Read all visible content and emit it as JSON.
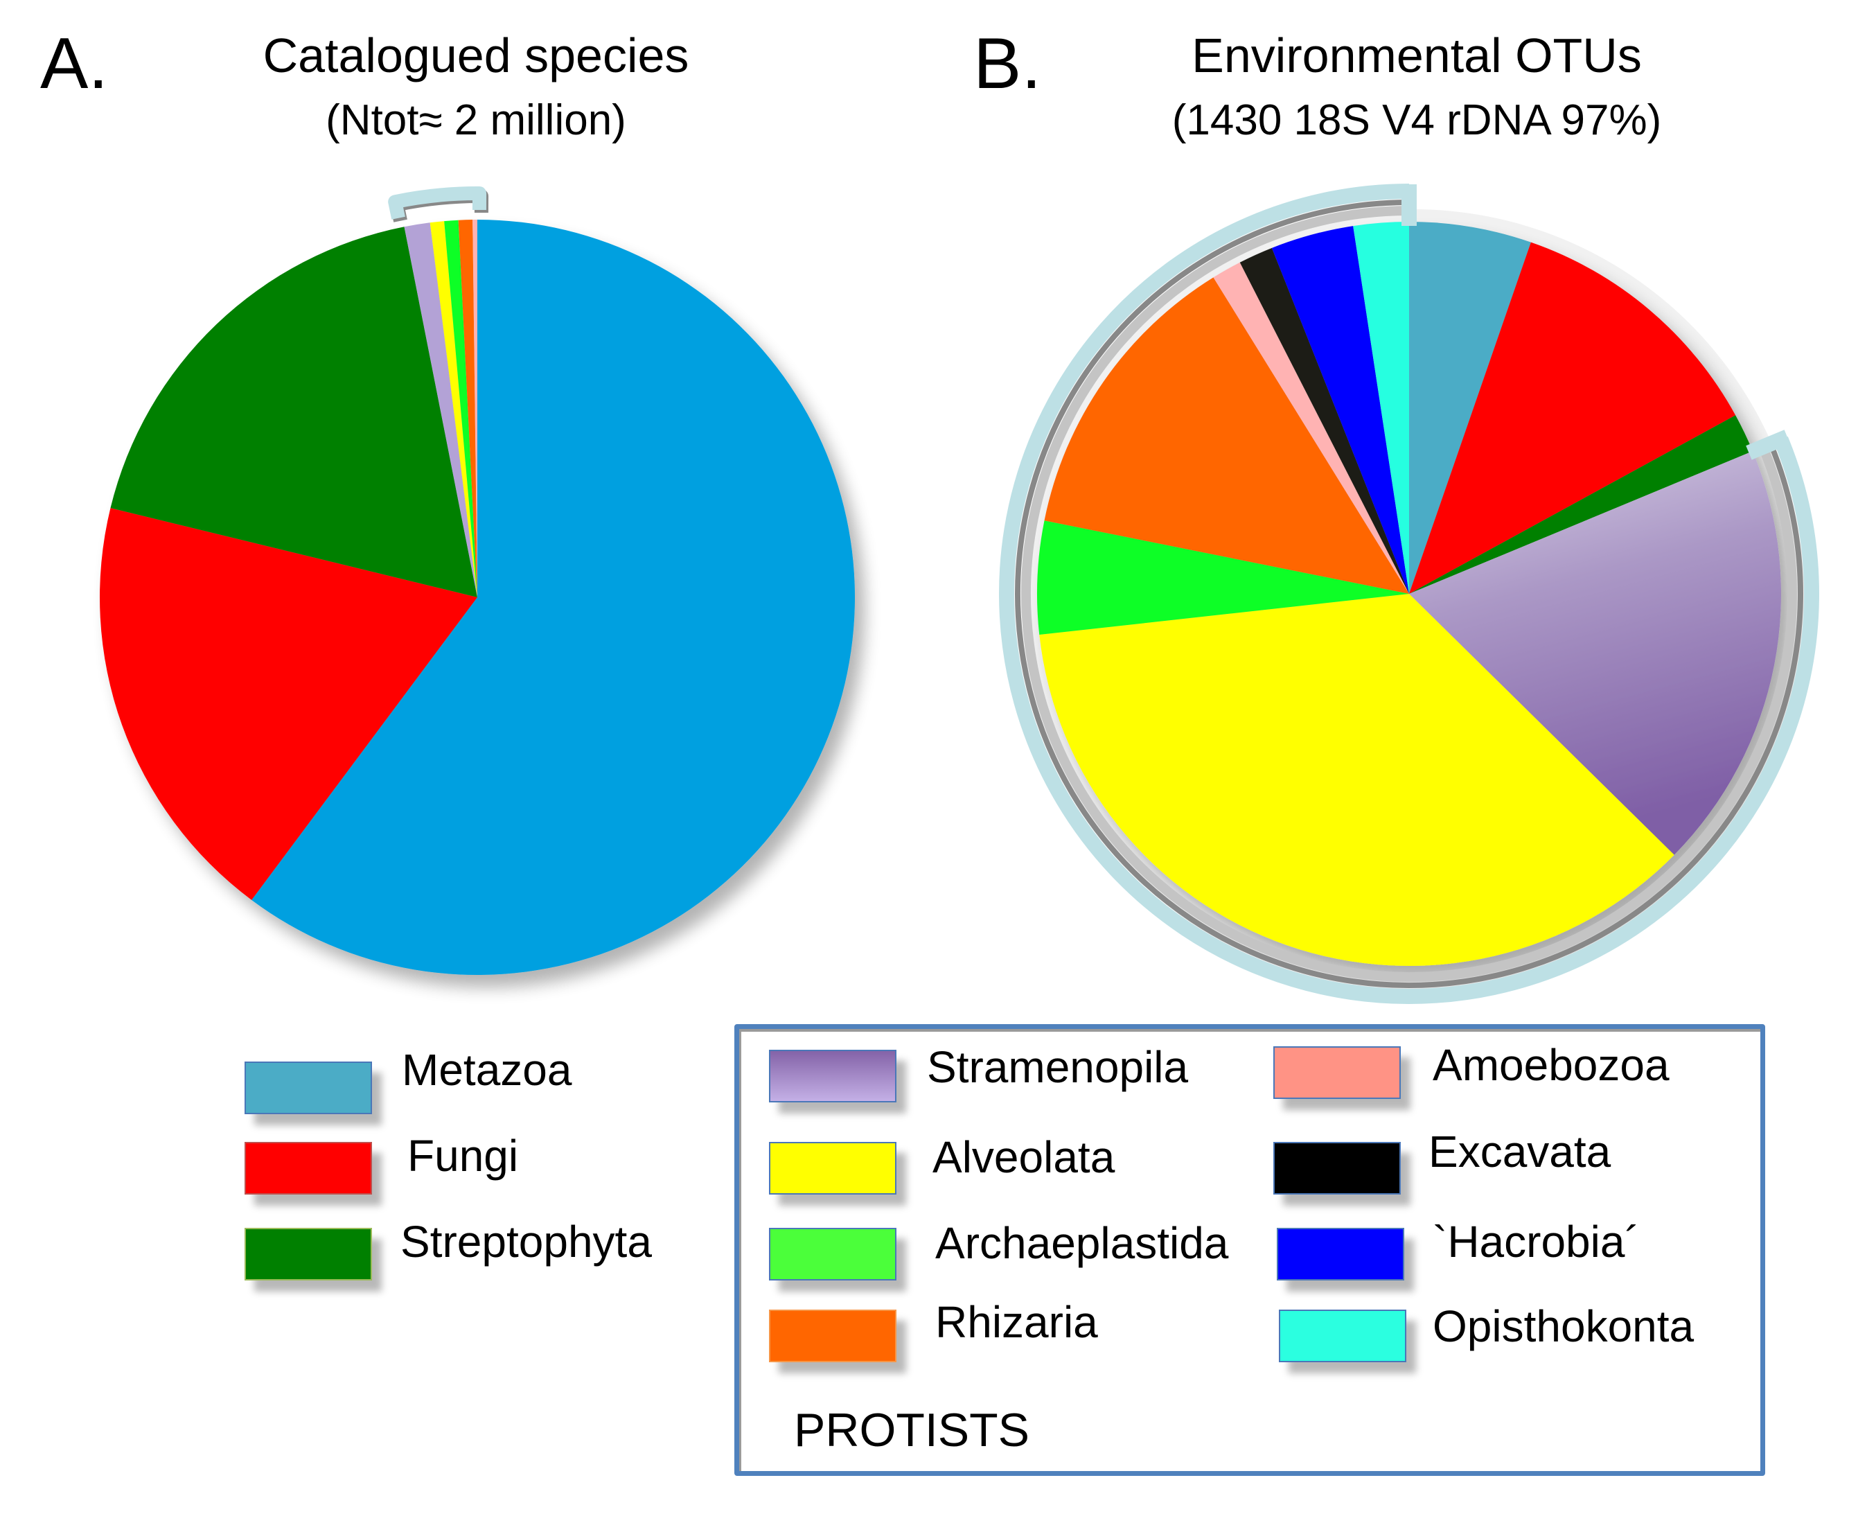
{
  "chart_data": [
    {
      "type": "pie",
      "panel": "A.",
      "title": "Catalogued species",
      "subtitle": "(Ntot≈ 2 million)",
      "start": "12 o'clock, clockwise",
      "slices": [
        {
          "label": "Metazoa",
          "value": 60.2,
          "color": "#03a0e0"
        },
        {
          "label": "Fungi",
          "value": 18.6,
          "color": "#ff0000"
        },
        {
          "label": "Streptophyta",
          "value": 18.1,
          "color": "#008000"
        },
        {
          "label": "Stramenopila",
          "value": 1.1,
          "color": "#b3a2d6",
          "group": "PROTISTS"
        },
        {
          "label": "Alveolata",
          "value": 0.6,
          "color": "#ffff00",
          "group": "PROTISTS"
        },
        {
          "label": "Archaeplastida",
          "value": 0.6,
          "color": "#0aff28",
          "group": "PROTISTS"
        },
        {
          "label": "Rhizaria",
          "value": 0.6,
          "color": "#ff6600",
          "group": "PROTISTS"
        },
        {
          "label": "Amoebozoa",
          "value": 0.2,
          "color": "#ffb3b3",
          "group": "PROTISTS"
        }
      ],
      "bracket": "protists bracket"
    },
    {
      "type": "pie",
      "panel": "B.",
      "title": "Environmental OTUs",
      "subtitle": "(1430 18S V4 rDNA 97%)",
      "start": "12 o'clock, clockwise",
      "slices": [
        {
          "label": "Metazoa",
          "value": 5.3,
          "color": "#4bacc6"
        },
        {
          "label": "Fungi",
          "value": 11.7,
          "color": "#ff0000"
        },
        {
          "label": "Streptophyta",
          "value": 1.7,
          "color": "#008000"
        },
        {
          "label": "Stramenopila",
          "value": 18.6,
          "color": "gradient-purple",
          "group": "PROTISTS"
        },
        {
          "label": "Alveolata",
          "value": 35.8,
          "color": "#ffff00",
          "group": "PROTISTS"
        },
        {
          "label": "Archaeplastida",
          "value": 4.9,
          "color": "#0aff28",
          "group": "PROTISTS"
        },
        {
          "label": "Rhizaria",
          "value": 13.0,
          "color": "#ff6600",
          "group": "PROTISTS"
        },
        {
          "label": "Amoebozoa",
          "value": 1.3,
          "color": "#ffb3b3",
          "group": "PROTISTS"
        },
        {
          "label": "Excavata",
          "value": 1.5,
          "color": "#1e1c18",
          "group": "PROTISTS"
        },
        {
          "label": "`Hacrobia´",
          "value": 3.6,
          "color": "#0000ff",
          "group": "PROTISTS"
        },
        {
          "label": "Opisthokonta",
          "value": 2.4,
          "color": "#28ffe0",
          "group": "PROTISTS"
        }
      ],
      "bracket": "protists bracket"
    }
  ],
  "panels": {
    "a": {
      "letter": "A.",
      "title": "Catalogued species",
      "subtitle": "(Ntot≈ 2 million)"
    },
    "b": {
      "letter": "B.",
      "title": "Environmental OTUs",
      "subtitle": "(1430 18S V4 rDNA 97%)"
    }
  },
  "legend_main": [
    {
      "label": "Metazoa",
      "color": "#4bacc6"
    },
    {
      "label": "Fungi",
      "color": "#ff0000"
    },
    {
      "label": "Streptophyta",
      "color": "#008000"
    }
  ],
  "legend_protists": {
    "title": "PROTISTS",
    "col1": [
      {
        "label": "Stramenopila",
        "color": "gradient-purple"
      },
      {
        "label": "Alveolata",
        "color": "#ffff00"
      },
      {
        "label": "Archaeplastida",
        "color": "#4bff3a"
      },
      {
        "label": "Rhizaria",
        "color": "#ff6600"
      }
    ],
    "col2": [
      {
        "label": "Amoebozoa",
        "color": "#ff9385"
      },
      {
        "label": "Excavata",
        "color": "#000000"
      },
      {
        "label": "`Hacrobia´",
        "color": "#0000ff"
      },
      {
        "label": "Opisthokonta",
        "color": "#2bffe0"
      }
    ]
  },
  "colors": {
    "bracket": "#bde0e5",
    "bracket_line": "#888888",
    "legend_border": "#4f81bd"
  }
}
